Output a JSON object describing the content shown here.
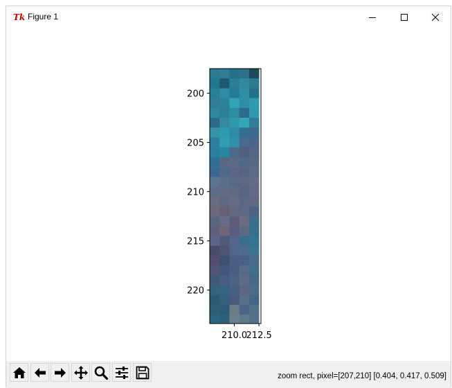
{
  "window": {
    "title": "Figure 1",
    "app_icon_text": "Tk",
    "controls": [
      "minimize-icon",
      "maximize-icon",
      "close-icon"
    ]
  },
  "toolbar": {
    "buttons": [
      {
        "name": "home",
        "icon": "home-icon"
      },
      {
        "name": "back",
        "icon": "arrow-left-icon"
      },
      {
        "name": "forward",
        "icon": "arrow-right-icon"
      },
      {
        "name": "pan",
        "icon": "move-icon"
      },
      {
        "name": "zoom",
        "icon": "magnifier-icon"
      },
      {
        "name": "configure",
        "icon": "sliders-icon"
      },
      {
        "name": "save",
        "icon": "floppy-icon"
      }
    ],
    "status": "zoom rect, pixel=[207,210] [0.404, 0.417, 0.509]"
  },
  "chart_data": {
    "type": "heatmap",
    "title": "",
    "xlabel": "",
    "ylabel": "",
    "x_ticks": [
      210.0,
      212.5
    ],
    "x_tick_labels": [
      "210.0",
      "212.5"
    ],
    "y_ticks": [
      200,
      205,
      210,
      215,
      220
    ],
    "y_tick_labels": [
      "200",
      "205",
      "210",
      "215",
      "220"
    ],
    "xlim": [
      207.5,
      212.7
    ],
    "ylim": [
      223.4,
      197.5
    ],
    "grid": false,
    "cell_columns": [
      208,
      209,
      210,
      211,
      212
    ],
    "cell_rows_start": 198,
    "cell_colors": [
      [
        "#2b7a94",
        "#2d7d95",
        "#256f88",
        "#2c6f86",
        "#1f4a5c"
      ],
      [
        "#23768f",
        "#1c5a70",
        "#2a7e98",
        "#2f8aa0",
        "#2d7a90"
      ],
      [
        "#268196",
        "#2b8ca2",
        "#237c93",
        "#2d8ea3",
        "#227189"
      ],
      [
        "#2f7e95",
        "#2c8299",
        "#33a2b4",
        "#2f8ea5",
        "#2e9bb0"
      ],
      [
        "#2d889d",
        "#2b7f98",
        "#2e8ca1",
        "#2c6d8c",
        "#3198ad"
      ],
      [
        "#2b6a89",
        "#36889e",
        "#2f97ac",
        "#34a6b6",
        "#2f7d99"
      ],
      [
        "#3792a8",
        "#2b9bb0",
        "#2e8ba3",
        "#326f8e",
        "#3e6890"
      ],
      [
        "#2d7fa0",
        "#319db1",
        "#2f92a8",
        "#47688f",
        "#4a6588"
      ],
      [
        "#297fa0",
        "#2986a1",
        "#4a6a8c",
        "#505f80",
        "#566485"
      ],
      [
        "#2e6f94",
        "#586884",
        "#5b6984",
        "#4f6887",
        "#58697f"
      ],
      [
        "#3b6892",
        "#4a6a88",
        "#5b6585",
        "#566480",
        "#5c6a87"
      ],
      [
        "#587690",
        "#5b6d88",
        "#556a87",
        "#5d6883",
        "#626c84"
      ],
      [
        "#5c6d87",
        "#616b82",
        "#5f6b80",
        "#586581",
        "#646a85"
      ],
      [
        "#6a6b7e",
        "#5f6882",
        "#676c83",
        "#5b6883",
        "#606880"
      ],
      [
        "#6c6a7a",
        "#665f76",
        "#646780",
        "#5d6885",
        "#4e6384"
      ],
      [
        "#5a6681",
        "#6a6a86",
        "#5b5c7a",
        "#6b6b84",
        "#3d6c8c"
      ],
      [
        "#5e5e7e",
        "#716478",
        "#5b5d80",
        "#5a6a84",
        "#38708c"
      ],
      [
        "#5d6384",
        "#4d5a7a",
        "#55648a",
        "#3d6d8d",
        "#34738f"
      ],
      [
        "#4a4a6a",
        "#4f5474",
        "#4f6686",
        "#4b6b8c",
        "#39768e"
      ],
      [
        "#544e6e",
        "#3f4f70",
        "#4d5e84",
        "#4a6185",
        "#496a88"
      ],
      [
        "#4e5575",
        "#40587a",
        "#4a5e82",
        "#556a88",
        "#3e6e8a"
      ],
      [
        "#3d5a78",
        "#4a5c80",
        "#4a6484",
        "#5e6a87",
        "#46688a"
      ],
      [
        "#33617e",
        "#37627f",
        "#465f82",
        "#5a6682",
        "#4f6a88"
      ],
      [
        "#2c5a75",
        "#35607c",
        "#4a5a7a",
        "#5a6e8a",
        "#446688"
      ],
      [
        "#2f5e76",
        "#2c5c77",
        "#6b7b88",
        "#4e6484",
        "#527088"
      ],
      [
        "#27667e",
        "#2d5f7a",
        "#6a7f8e",
        "#5c7a8c",
        "#55708a"
      ],
      [
        "#2a6480",
        "#305c78",
        "#5b7388",
        "#4d6384",
        "#4f6a86"
      ],
      [
        "#23566e",
        "#33587a",
        "#3f5c82",
        "#4b6a88",
        "#3f6a84"
      ],
      [
        "#2f8a9e",
        "#2a5e7a",
        "#2e4f70",
        "#4b5f80",
        "#3e6488"
      ],
      [
        "#2a6c87",
        "#2f5a78",
        "#2c5678",
        "#3e5c7c",
        "#2c5c78"
      ]
    ]
  }
}
